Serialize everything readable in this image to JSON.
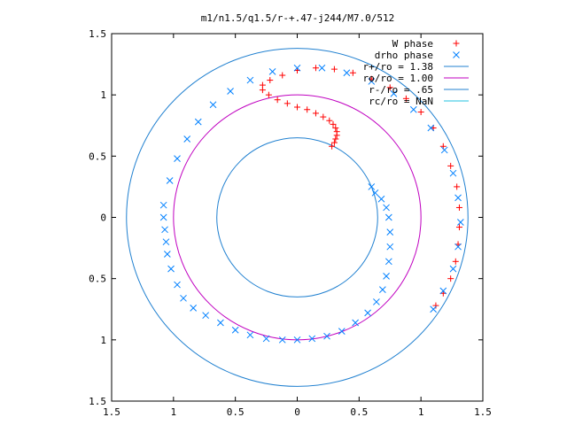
{
  "chart_data": {
    "type": "scatter",
    "title": "m1/n1.5/q1.5/r-+.47-j244/M7.0/512",
    "xlabel": "",
    "ylabel": "",
    "xlim": [
      -1.5,
      1.5
    ],
    "ylim": [
      -1.5,
      1.5
    ],
    "x_ticks": [
      "1.5",
      "1",
      "0.5",
      "0",
      "0.5",
      "1",
      "1.5"
    ],
    "y_ticks": [
      "1.5",
      "1",
      "0.5",
      "0",
      "0.5",
      "1",
      "1.5"
    ],
    "tick_values": [
      -1.5,
      -1,
      -0.5,
      0,
      0.5,
      1,
      1.5
    ],
    "grid": false,
    "legend_position": "top-right",
    "legend": [
      {
        "label": "W phase",
        "marker": "plus",
        "color": "#ff0000"
      },
      {
        "label": "drho phase",
        "marker": "cross",
        "color": "#0080ff"
      },
      {
        "label": "r+/ro = 1.38",
        "marker": "line",
        "color": "#2080d0"
      },
      {
        "label": "ro/ro = 1.00",
        "marker": "line",
        "color": "#c000c0"
      },
      {
        "label": "r-/ro = .65",
        "marker": "line",
        "color": "#2080d0"
      },
      {
        "label": "rc/ro = NaN",
        "marker": "line",
        "color": "#20c0e0"
      }
    ],
    "circles": [
      {
        "name": "r+/ro",
        "radius": 1.38,
        "color": "#2080d0"
      },
      {
        "name": "ro/ro",
        "radius": 1.0,
        "color": "#c000c0"
      },
      {
        "name": "r-/ro",
        "radius": 0.65,
        "color": "#2080d0"
      }
    ],
    "series": [
      {
        "name": "W phase",
        "marker": "plus",
        "color": "#ff0000",
        "points": [
          [
            0.28,
            0.58
          ],
          [
            0.3,
            0.61
          ],
          [
            0.31,
            0.64
          ],
          [
            0.32,
            0.67
          ],
          [
            0.32,
            0.7
          ],
          [
            0.31,
            0.73
          ],
          [
            0.29,
            0.76
          ],
          [
            0.26,
            0.79
          ],
          [
            0.21,
            0.82
          ],
          [
            0.15,
            0.85
          ],
          [
            0.08,
            0.88
          ],
          [
            0.0,
            0.9
          ],
          [
            -0.08,
            0.93
          ],
          [
            -0.16,
            0.96
          ],
          [
            -0.23,
            1.0
          ],
          [
            -0.28,
            1.04
          ],
          [
            -0.28,
            1.08
          ],
          [
            -0.22,
            1.12
          ],
          [
            -0.12,
            1.16
          ],
          [
            0.0,
            1.2
          ],
          [
            0.15,
            1.22
          ],
          [
            0.3,
            1.21
          ],
          [
            0.45,
            1.18
          ],
          [
            0.6,
            1.13
          ],
          [
            0.75,
            1.06
          ],
          [
            0.88,
            0.97
          ],
          [
            1.0,
            0.86
          ],
          [
            1.1,
            0.73
          ],
          [
            1.18,
            0.58
          ],
          [
            1.24,
            0.42
          ],
          [
            1.29,
            0.25
          ],
          [
            1.31,
            0.08
          ],
          [
            1.31,
            -0.08
          ],
          [
            1.3,
            -0.22
          ],
          [
            1.28,
            -0.36
          ],
          [
            1.24,
            -0.5
          ],
          [
            1.18,
            -0.62
          ],
          [
            1.12,
            -0.72
          ]
        ]
      },
      {
        "name": "drho phase",
        "marker": "cross",
        "color": "#0080ff",
        "points": [
          [
            -1.08,
            0.1
          ],
          [
            -1.08,
            0.0
          ],
          [
            -1.07,
            -0.1
          ],
          [
            -1.06,
            -0.2
          ],
          [
            -1.05,
            -0.3
          ],
          [
            -1.02,
            -0.42
          ],
          [
            -0.97,
            -0.55
          ],
          [
            -0.92,
            -0.66
          ],
          [
            -0.84,
            -0.74
          ],
          [
            -0.74,
            -0.8
          ],
          [
            -0.62,
            -0.86
          ],
          [
            -0.5,
            -0.92
          ],
          [
            -0.38,
            -0.96
          ],
          [
            -0.25,
            -0.99
          ],
          [
            -0.12,
            -1.0
          ],
          [
            0.0,
            -1.0
          ],
          [
            0.12,
            -0.99
          ],
          [
            0.24,
            -0.97
          ],
          [
            0.36,
            -0.93
          ],
          [
            0.47,
            -0.86
          ],
          [
            0.57,
            -0.78
          ],
          [
            0.64,
            -0.69
          ],
          [
            0.69,
            -0.59
          ],
          [
            0.72,
            -0.48
          ],
          [
            0.74,
            -0.36
          ],
          [
            0.75,
            -0.24
          ],
          [
            0.75,
            -0.12
          ],
          [
            0.74,
            0.0
          ],
          [
            0.72,
            0.08
          ],
          [
            0.68,
            0.15
          ],
          [
            0.63,
            0.2
          ],
          [
            0.6,
            0.25
          ],
          [
            -1.03,
            0.3
          ],
          [
            -0.97,
            0.48
          ],
          [
            -0.89,
            0.64
          ],
          [
            -0.8,
            0.78
          ],
          [
            -0.68,
            0.92
          ],
          [
            -0.54,
            1.03
          ],
          [
            -0.38,
            1.12
          ],
          [
            -0.2,
            1.19
          ],
          [
            0.0,
            1.22
          ],
          [
            0.2,
            1.22
          ],
          [
            0.4,
            1.18
          ],
          [
            0.6,
            1.11
          ],
          [
            0.78,
            1.01
          ],
          [
            0.94,
            0.88
          ],
          [
            1.08,
            0.73
          ],
          [
            1.19,
            0.55
          ],
          [
            1.26,
            0.36
          ],
          [
            1.3,
            0.16
          ],
          [
            1.32,
            -0.04
          ],
          [
            1.3,
            -0.24
          ],
          [
            1.26,
            -0.42
          ],
          [
            1.18,
            -0.6
          ],
          [
            1.1,
            -0.75
          ]
        ]
      }
    ]
  }
}
